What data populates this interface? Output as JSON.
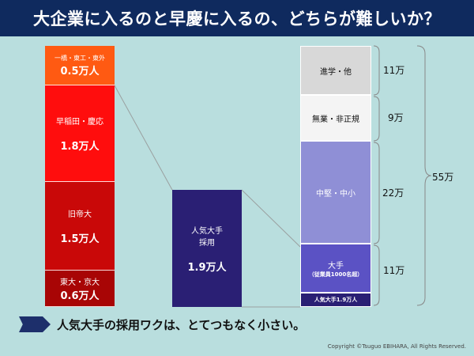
{
  "title": "大企業に入るのと早慶に入るの、どちらが難しいか？",
  "left_stack": [
    {
      "name": "一橋・東工・東外",
      "value": "0.5万人"
    },
    {
      "name": "早稲田・慶応",
      "value": "1.8万人"
    },
    {
      "name": "旧帝大",
      "value": "1.5万人"
    },
    {
      "name": "東大・京大",
      "value": "0.6万人"
    }
  ],
  "middle_bar": {
    "name": "人気大手\n採用",
    "value": "1.9万人"
  },
  "right_stack": [
    {
      "name": "進学・他",
      "count": "11万"
    },
    {
      "name": "無業・非正規",
      "count": "9万"
    },
    {
      "name": "中堅・中小",
      "count": "22万"
    },
    {
      "name": "大手",
      "note": "（従業員1000名超）",
      "count": "11万"
    },
    {
      "name": "人気大手1.9万人"
    }
  ],
  "total": "55万",
  "conclusion": "人気大手の採用ワクは、とてつもなく小さい。",
  "copyright": "Copyright ©Tsuguo EBIHARA, All Rights Reserved.",
  "colors": {
    "title_bg": "#0f2a5e",
    "background": "#b9dede",
    "orange": "#ff5a12",
    "red": "#ff0d0d",
    "crimson": "#c90808",
    "dark_red": "#a80505",
    "navy": "#2a1f74",
    "gray": "#d8d8d8",
    "white": "#f4f4f4",
    "lavender": "#8f8fd6",
    "blue_violet": "#5b52c4"
  }
}
